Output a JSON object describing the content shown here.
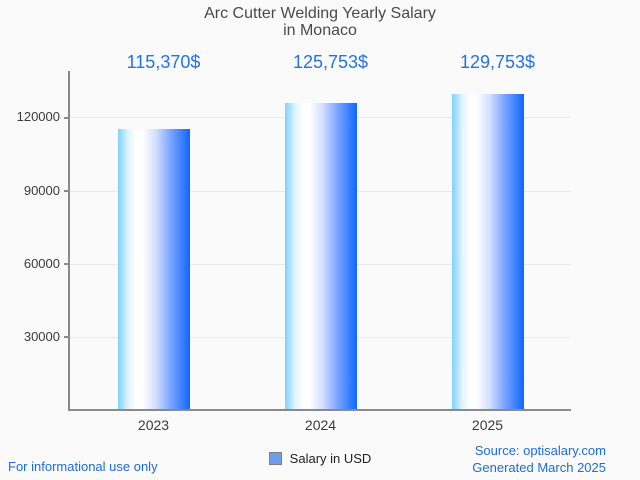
{
  "title": {
    "line1": "Arc Cutter Welding Yearly Salary",
    "line2": "in Monaco"
  },
  "chart_data": {
    "type": "bar",
    "title": "Arc Cutter Welding Yearly Salary in Monaco",
    "categories": [
      "2023",
      "2024",
      "2025"
    ],
    "series": [
      {
        "name": "Salary in USD",
        "values": [
          115370,
          125753,
          129753
        ]
      }
    ],
    "value_labels": [
      "115,370$",
      "125,753$",
      "129,753$"
    ],
    "yticks": [
      30000,
      60000,
      90000,
      120000
    ],
    "ylim": [
      0,
      139000
    ],
    "xlabel": "",
    "ylabel": "",
    "grid": true,
    "legend_position": "bottom"
  },
  "legend": {
    "label": "Salary in USD"
  },
  "footer": {
    "left": "For informational use only",
    "source": "Source: optisalary.com",
    "generated": "Generated March 2025"
  },
  "colors": {
    "value_label": "#2472e8",
    "footer_text": "#1b6ce5",
    "bar_edge_dark": "#0f66fd",
    "bar_edge_light": "#7dd2fc",
    "legend_swatch": "#6d9eeb",
    "axis": "#8a8a8a",
    "gridline": "#e9e9e9",
    "title_text": "#4a4a4a",
    "tick_text": "#3c3c3c",
    "background": "#fafafa"
  }
}
